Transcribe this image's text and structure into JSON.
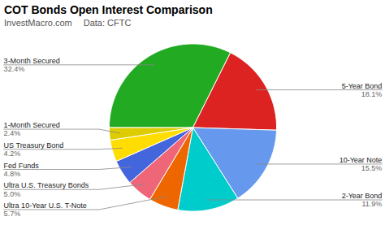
{
  "chart_data": {
    "type": "pie",
    "title": "COT Bonds Open Interest Comparison",
    "subtitle": "InvestMacro.com",
    "source": "Data: CFTC",
    "categories": [
      "3-Month Secured",
      "5-Year Bond",
      "10-Year Note",
      "2-Year Bond",
      "Ultra 10-Year U.S. T-Note",
      "Ultra U.S. Treasury Bonds",
      "Fed Funds",
      "US Treasury Bond",
      "1-Month Secured"
    ],
    "values": [
      32.4,
      18.1,
      15.5,
      11.9,
      5.7,
      5.0,
      4.8,
      4.2,
      2.4
    ],
    "colors": [
      "#22aa22",
      "#dd2222",
      "#6699ee",
      "#00cccc",
      "#ee6600",
      "#ee6677",
      "#4466dd",
      "#ffdd00",
      "#ddcc00"
    ],
    "data_labels": true,
    "value_labels": [
      "32.4%",
      "18.1%",
      "15.5%",
      "11.9%",
      "5.7%",
      "5.0%",
      "4.8%",
      "4.2%",
      "2.4%"
    ]
  }
}
